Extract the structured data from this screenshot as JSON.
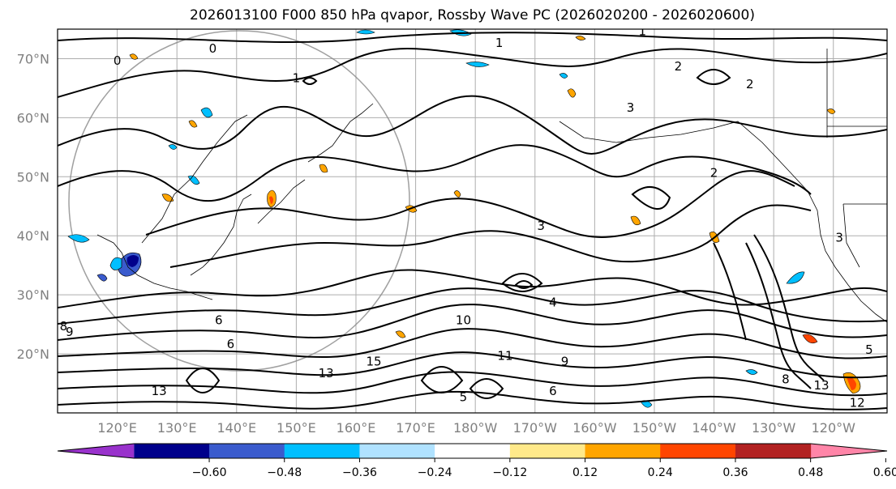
{
  "title": "2026013100 F000 850 hPa qvapor, Rossby Wave PC (2026020200 - 2026020600)",
  "latitudes": [
    {
      "value": 70,
      "label": "70°N"
    },
    {
      "value": 60,
      "label": "60°N"
    },
    {
      "value": 50,
      "label": "50°N"
    },
    {
      "value": 40,
      "label": "40°N"
    },
    {
      "value": 30,
      "label": "30°N"
    },
    {
      "value": 20,
      "label": "20°N"
    }
  ],
  "longitudes": [
    {
      "value": 120,
      "label": "120°E"
    },
    {
      "value": 130,
      "label": "130°E"
    },
    {
      "value": 140,
      "label": "140°E"
    },
    {
      "value": 150,
      "label": "150°E"
    },
    {
      "value": 160,
      "label": "160°E"
    },
    {
      "value": 170,
      "label": "170°E"
    },
    {
      "value": 180,
      "label": "180°W"
    },
    {
      "value": 190,
      "label": "170°W"
    },
    {
      "value": 200,
      "label": "160°W"
    },
    {
      "value": 210,
      "label": "150°W"
    },
    {
      "value": 220,
      "label": "140°W"
    },
    {
      "value": 230,
      "label": "130°W"
    },
    {
      "value": 240,
      "label": "120°W"
    }
  ],
  "map_extent": {
    "lon_min": 110,
    "lon_max": 249,
    "lat_min": 10,
    "lat_max": 75
  },
  "colorbar": {
    "colors": [
      "#9932CC",
      "#00008B",
      "#3A5BCD",
      "#00BFFF",
      "#B0E2FF",
      "#FFFFFF",
      "#FFE98A",
      "#FFA500",
      "#FF4500",
      "#B22222",
      "#FF85A8"
    ],
    "ticks": [
      "−0.60",
      "−0.48",
      "−0.36",
      "−0.24",
      "−0.12",
      "0.12",
      "0.24",
      "0.36",
      "0.48",
      "0.60"
    ]
  },
  "contour_labels": [
    {
      "text": "0",
      "lon": 136,
      "lat": 71
    },
    {
      "text": "0",
      "lon": 120,
      "lat": 69
    },
    {
      "text": "1",
      "lon": 208,
      "lat": 74
    },
    {
      "text": "1",
      "lon": 184,
      "lat": 72
    },
    {
      "text": "1",
      "lon": 150,
      "lat": 66
    },
    {
      "text": "2",
      "lon": 214,
      "lat": 68
    },
    {
      "text": "2",
      "lon": 226,
      "lat": 65
    },
    {
      "text": "2",
      "lon": 220,
      "lat": 50
    },
    {
      "text": "3",
      "lon": 206,
      "lat": 61
    },
    {
      "text": "3",
      "lon": 191,
      "lat": 41
    },
    {
      "text": "3",
      "lon": 241,
      "lat": 39
    },
    {
      "text": "4",
      "lon": 193,
      "lat": 28
    },
    {
      "text": "6",
      "lon": 139,
      "lat": 21
    },
    {
      "text": "6",
      "lon": 137,
      "lat": 25
    },
    {
      "text": "8",
      "lon": 111,
      "lat": 24
    },
    {
      "text": "9",
      "lon": 112,
      "lat": 23
    },
    {
      "text": "10",
      "lon": 178,
      "lat": 25
    },
    {
      "text": "11",
      "lon": 185,
      "lat": 19
    },
    {
      "text": "13",
      "lon": 155,
      "lat": 16
    },
    {
      "text": "13",
      "lon": 127,
      "lat": 13
    },
    {
      "text": "15",
      "lon": 163,
      "lat": 18
    },
    {
      "text": "12",
      "lon": 244,
      "lat": 11
    },
    {
      "text": "13",
      "lon": 238,
      "lat": 14
    },
    {
      "text": "5",
      "lon": 246,
      "lat": 20
    },
    {
      "text": "5",
      "lon": 178,
      "lat": 12
    },
    {
      "text": "6",
      "lon": 193,
      "lat": 13
    },
    {
      "text": "8",
      "lon": 232,
      "lat": 15
    },
    {
      "text": "9",
      "lon": 195,
      "lat": 18
    }
  ]
}
